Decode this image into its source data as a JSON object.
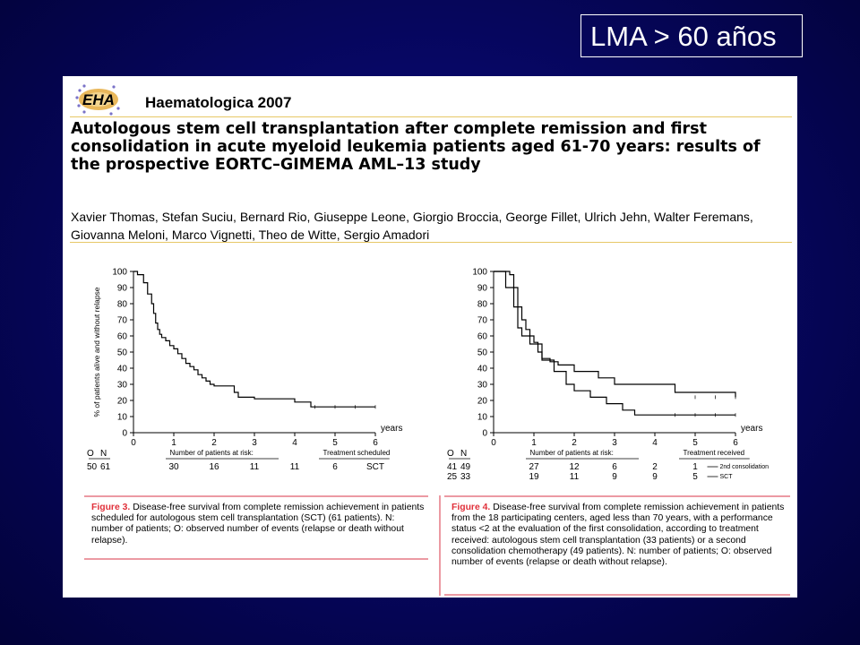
{
  "slide": {
    "title": "LMA > 60 años",
    "background_color": "#06065c"
  },
  "paper": {
    "logo_icon": "ehh-logo",
    "journal": "Haematologica 2007",
    "title": "Autologous stem cell transplantation after complete remission and first consolidation in acute myeloid leukemia patients aged 61-70 years: results of the prospective EORTC–GIMEMA AML–13 study",
    "authors": "Xavier Thomas, Stefan Suciu, Bernard Rio, Giuseppe Leone, Giorgio Broccia, George Fillet, Ulrich Jehn, Walter Feremans, Giovanna Meloni, Marco Vignetti, Theo de Witte, Sergio Amadori",
    "accent_color": "#e7c867",
    "caption_color": "#e0303a"
  },
  "chart_data": [
    {
      "type": "line",
      "ylabel": "% of patients alive and without relapse",
      "xlabel": "years",
      "xlim": [
        0,
        6
      ],
      "ylim": [
        0,
        100
      ],
      "xticks": [
        "0",
        "1",
        "2",
        "3",
        "4",
        "5",
        "6"
      ],
      "yticks": [
        "0",
        "10",
        "20",
        "30",
        "40",
        "50",
        "60",
        "70",
        "80",
        "90",
        "100"
      ],
      "series": [
        {
          "x": [
            0,
            0.1,
            0.25,
            0.35,
            0.45,
            0.5,
            0.55,
            0.6,
            0.65,
            0.7,
            0.8,
            0.9,
            1.0,
            1.1,
            1.2,
            1.3,
            1.4,
            1.5,
            1.6,
            1.7,
            1.8,
            1.9,
            2.0,
            2.5,
            2.6,
            3.0,
            4.0,
            4.4,
            6.0
          ],
          "y": [
            100,
            98,
            93,
            86,
            80,
            74,
            68,
            64,
            61,
            59,
            57,
            54,
            52,
            49,
            46,
            43,
            41,
            39,
            36,
            34,
            32,
            30,
            29,
            25,
            22,
            21,
            19,
            16,
            16
          ]
        }
      ],
      "risk_table": {
        "header_o": "O",
        "header_n": "N",
        "title": "Number of patients at risk:",
        "treatment_title": "Treatment scheduled",
        "rows": [
          {
            "o": "50",
            "n": "61",
            "values": [
              "30",
              "16",
              "11",
              "11",
              "6"
            ],
            "label": "SCT"
          }
        ]
      },
      "caption_label": "Figure 3.",
      "caption": "Disease-free survival from complete remission achievement in patients scheduled for autologous stem cell transplantation (SCT) (61 patients). N: number of patients; O: observed number of events (relapse or death without relapse)."
    },
    {
      "type": "line",
      "xlabel": "years",
      "xlim": [
        0,
        6
      ],
      "ylim": [
        0,
        100
      ],
      "xticks": [
        "0",
        "1",
        "2",
        "3",
        "4",
        "5",
        "6"
      ],
      "yticks": [
        "0",
        "10",
        "20",
        "30",
        "40",
        "50",
        "60",
        "70",
        "80",
        "90",
        "100"
      ],
      "series": [
        {
          "name": "2nd consolidation",
          "x": [
            0,
            0.4,
            0.5,
            0.6,
            0.7,
            0.8,
            0.9,
            1.0,
            1.1,
            1.2,
            1.4,
            1.6,
            2.0,
            2.6,
            3.0,
            4.0,
            4.5,
            6.0
          ],
          "y": [
            100,
            98,
            90,
            78,
            70,
            64,
            60,
            56,
            50,
            46,
            44,
            42,
            38,
            34,
            30,
            30,
            25,
            22
          ]
        },
        {
          "name": "SCT",
          "x": [
            0,
            0.3,
            0.5,
            0.6,
            0.7,
            0.9,
            1.2,
            1.5,
            1.8,
            2.0,
            2.4,
            2.8,
            3.2,
            3.5,
            6.0
          ],
          "y": [
            100,
            90,
            78,
            65,
            60,
            55,
            45,
            38,
            30,
            26,
            22,
            18,
            14,
            11,
            11
          ]
        }
      ],
      "risk_table": {
        "header_o": "O",
        "header_n": "N",
        "title": "Number of patients at risk:",
        "treatment_title": "Treatment received",
        "rows": [
          {
            "o": "41",
            "n": "49",
            "values": [
              "27",
              "12",
              "6",
              "2",
              "1"
            ],
            "label": "2nd consolidation"
          },
          {
            "o": "25",
            "n": "33",
            "values": [
              "19",
              "11",
              "9",
              "9",
              "5"
            ],
            "label": "SCT"
          }
        ]
      },
      "caption_label": "Figure 4.",
      "caption": "Disease-free survival from complete remission achievement in patients from the 18 participating centers, aged less than 70 years, with a performance status <2 at the evaluation of the first consolidation, according to treatment received: autologous stem cell transplantation (33 patients) or a second consolidation chemotherapy (49 patients). N: number of patients; O: observed number of events (relapse or death without relapse)."
    }
  ]
}
